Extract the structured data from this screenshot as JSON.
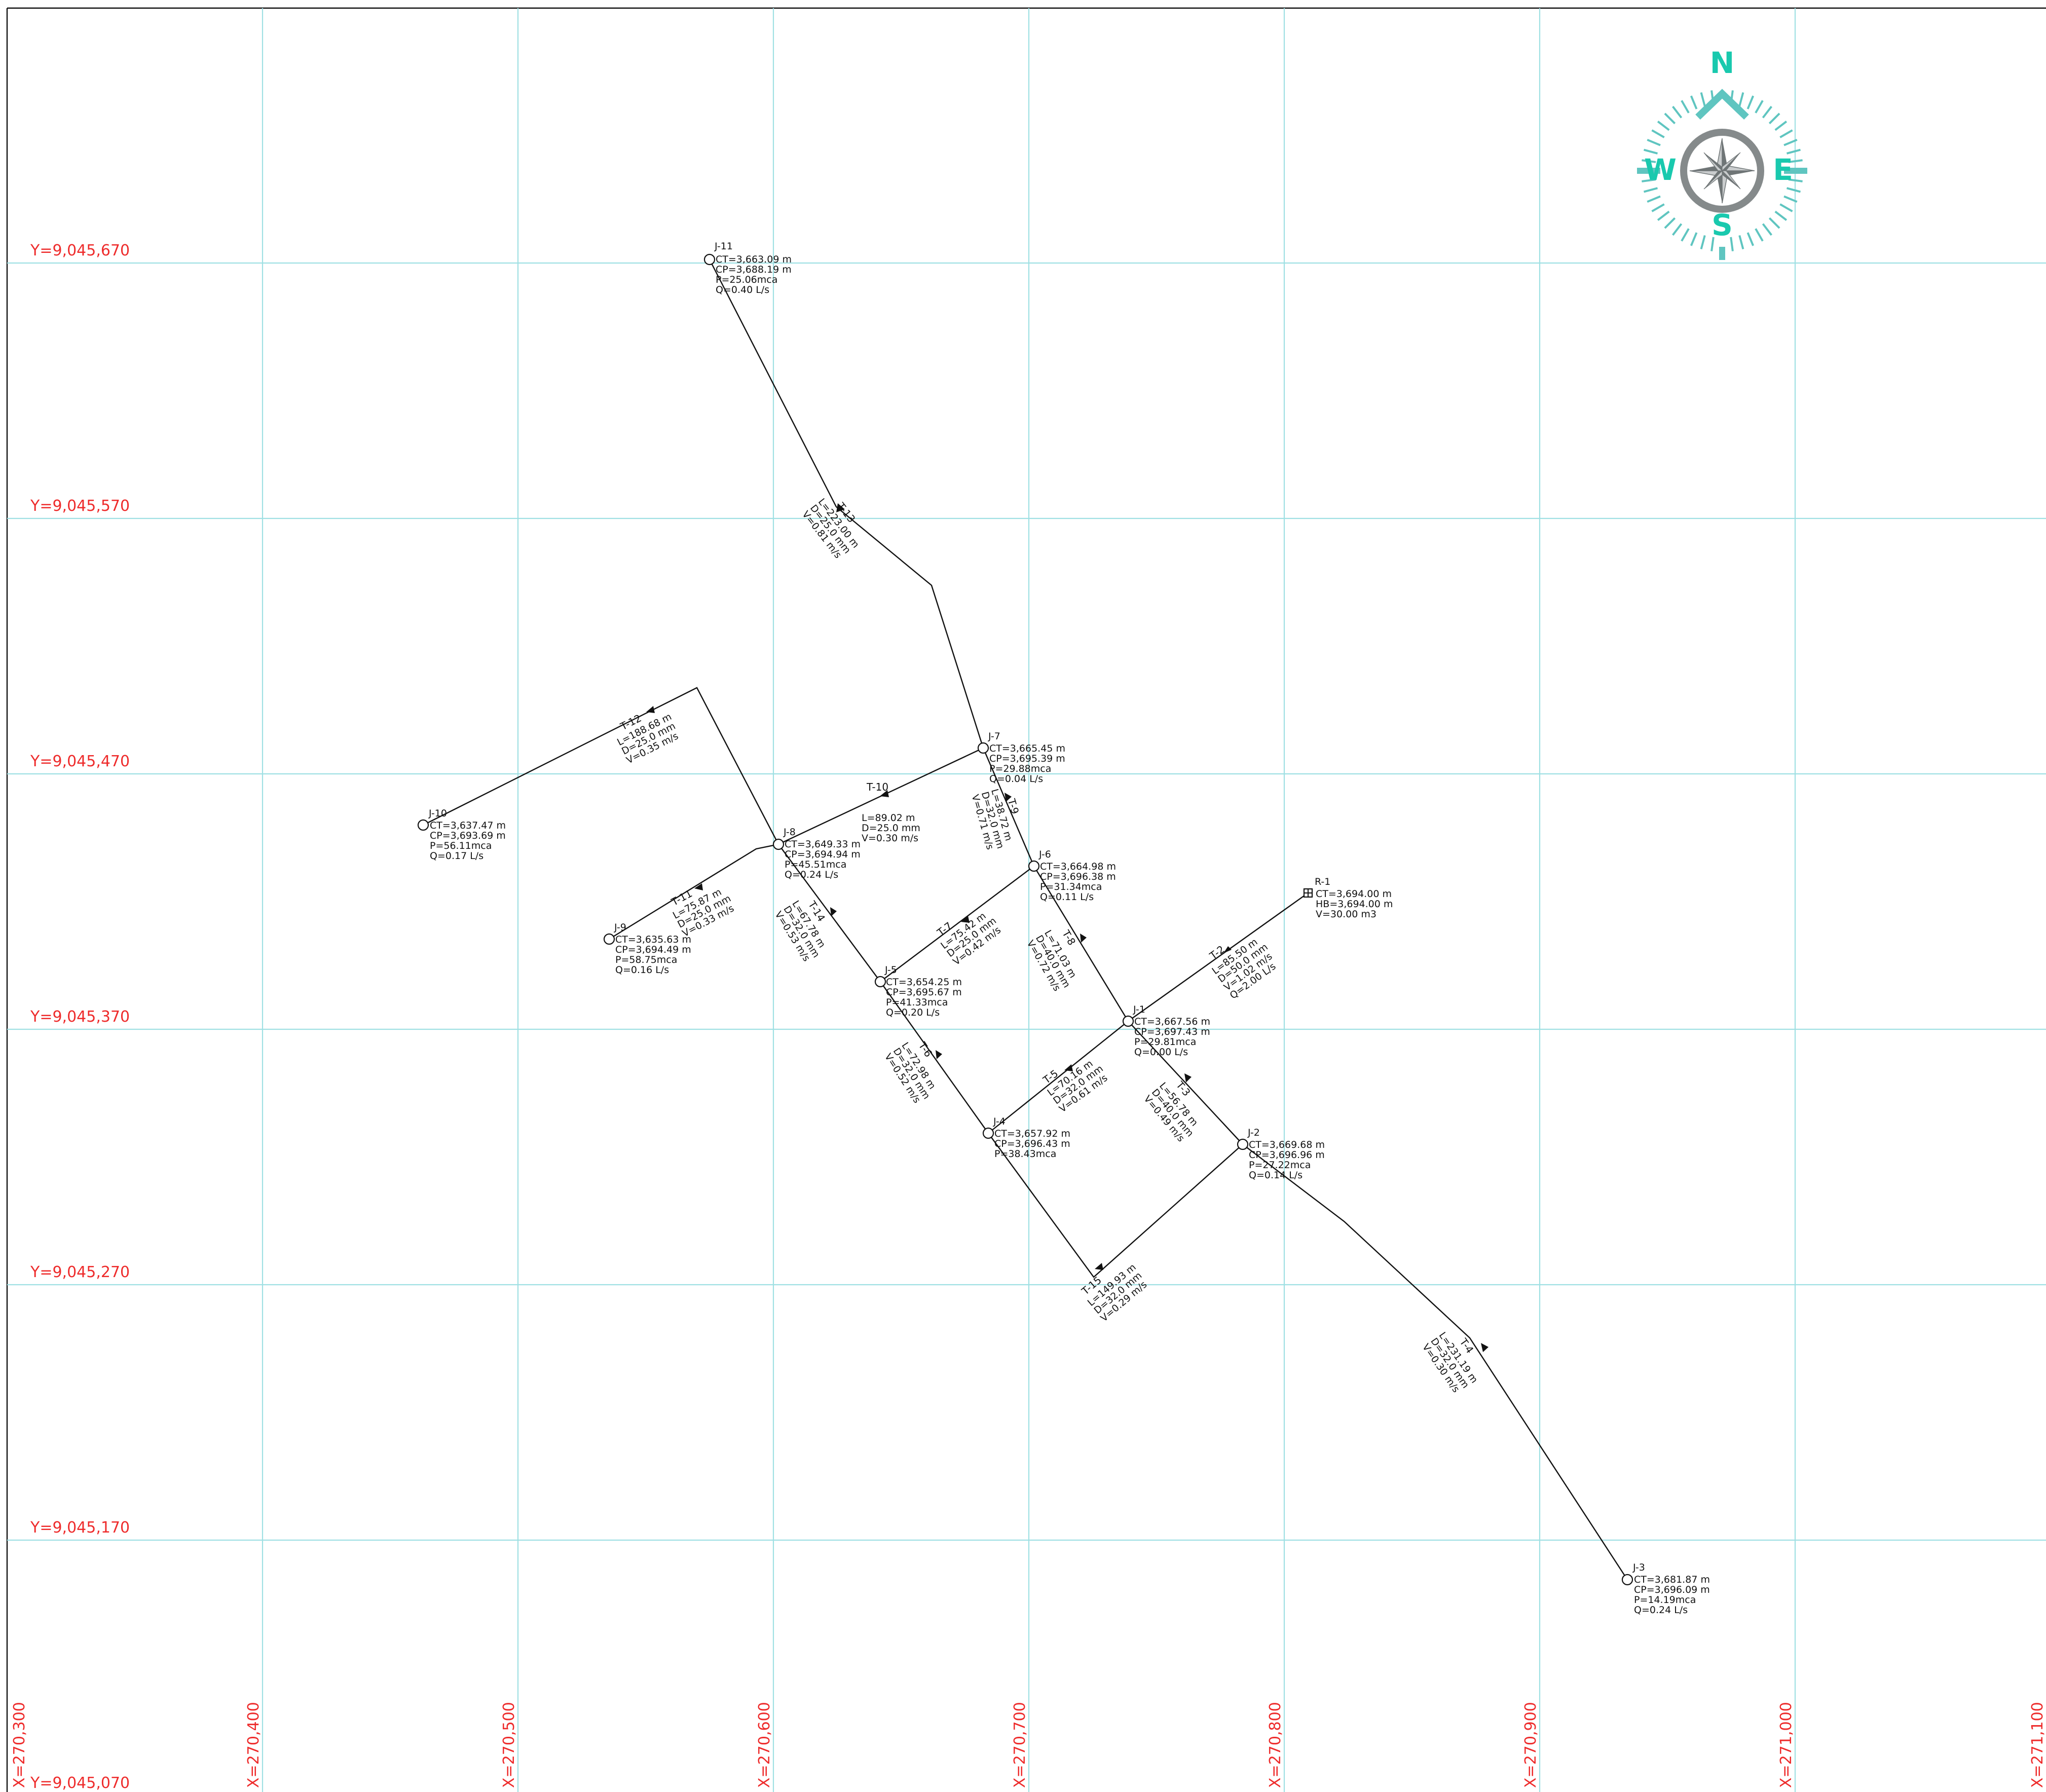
{
  "map": {
    "x_labels": [
      "X=270,300",
      "X=270,400",
      "X=270,500",
      "X=270,600",
      "X=270,700",
      "X=270,800",
      "X=270,900",
      "X=271,000",
      "X=271,100"
    ],
    "y_labels": [
      "Y=9,045,670",
      "Y=9,045,570",
      "Y=9,045,470",
      "Y=9,045,370",
      "Y=9,045,270",
      "Y=9,045,170",
      "Y=9,045,070"
    ],
    "compass": {
      "n": "N",
      "s": "S",
      "e": "E",
      "w": "W",
      "ring_color": "#858a8b",
      "letter_color": "#19c9ae",
      "tick_color": "#5fc5c0"
    },
    "colors": {
      "grid": "#9fe0e3",
      "coords": "#ee2b2b",
      "network": "#111111"
    }
  },
  "nodes": [
    {
      "id": "J-11",
      "lines": [
        "CT=3,663.09 m",
        "CP=3,688.19 m",
        "P=25.06mca",
        "Q=0.40 L/s"
      ]
    },
    {
      "id": "J-7",
      "lines": [
        "CT=3,665.45 m",
        "CP=3,695.39 m",
        "P=29.88mca",
        "Q=0.04 L/s"
      ]
    },
    {
      "id": "J-10",
      "lines": [
        "CT=3,637.47 m",
        "CP=3,693.69 m",
        "P=56.11mca",
        "Q=0.17 L/s"
      ]
    },
    {
      "id": "J-8",
      "lines": [
        "CT=3,649.33 m",
        "CP=3,694.94 m",
        "P=45.51mca",
        "Q=0.24 L/s"
      ]
    },
    {
      "id": "J-6",
      "lines": [
        "CT=3,664.98 m",
        "CP=3,696.38 m",
        "P=31.34mca",
        "Q=0.11 L/s"
      ]
    },
    {
      "id": "R-1",
      "lines": [
        "CT=3,694.00 m",
        "HB=3,694.00 m",
        "V=30.00 m3"
      ]
    },
    {
      "id": "J-9",
      "lines": [
        "CT=3,635.63 m",
        "CP=3,694.49 m",
        "P=58.75mca",
        "Q=0.16 L/s"
      ]
    },
    {
      "id": "J-5",
      "lines": [
        "CT=3,654.25 m",
        "CP=3,695.67 m",
        "P=41.33mca",
        "Q=0.20 L/s"
      ]
    },
    {
      "id": "J-1",
      "lines": [
        "CT=3,667.56 m",
        "CP=3,697.43 m",
        "P=29.81mca",
        "Q=0.00 L/s"
      ]
    },
    {
      "id": "J-4",
      "lines": [
        "CT=3,657.92 m",
        "CP=3,696.43 m",
        "P=38.43mca"
      ]
    },
    {
      "id": "J-2",
      "lines": [
        "CT=3,669.68 m",
        "CP=3,696.96 m",
        "P=27.22mca",
        "Q=0.14 L/s"
      ]
    },
    {
      "id": "J-3",
      "lines": [
        "CT=3,681.87 m",
        "CP=3,696.09 m",
        "P=14.19mca",
        "Q=0.24 L/s"
      ]
    }
  ],
  "pipes": [
    {
      "id": "T-13",
      "lines": [
        "L=223.00 m",
        "D=25.0 mm",
        "V=0.81 m/s"
      ]
    },
    {
      "id": "T-12",
      "lines": [
        "L=188.68 m",
        "D=25.0 mm",
        "V=0.35 m/s"
      ]
    },
    {
      "id": "T-10",
      "lines": [
        "L=89.02 m",
        "D=25.0 mm",
        "V=0.30 m/s"
      ]
    },
    {
      "id": "T-9",
      "lines": [
        "L=38.72 m",
        "D=32.0 mm",
        "V=0.71 m/s"
      ]
    },
    {
      "id": "T-11",
      "lines": [
        "L=75.87 m",
        "D=25.0 mm",
        "V=0.33 m/s"
      ]
    },
    {
      "id": "T-14",
      "lines": [
        "L=67.78 m",
        "D=32.0 mm",
        "V=0.53 m/s"
      ]
    },
    {
      "id": "T-7",
      "lines": [
        "L=75.42 m",
        "D=25.0 mm",
        "V=0.42 m/s"
      ]
    },
    {
      "id": "T-8",
      "lines": [
        "L=71.03 m",
        "D=40.0 mm",
        "V=0.72 m/s"
      ]
    },
    {
      "id": "T-2",
      "lines": [
        "L=85.50 m",
        "D=50.0 mm",
        "V=1.02 m/s",
        "Q=2.00 L/s"
      ]
    },
    {
      "id": "T-6",
      "lines": [
        "L=72.98 m",
        "D=32.0 mm",
        "V=0.52 m/s"
      ]
    },
    {
      "id": "T-5",
      "lines": [
        "L=70.16 m",
        "D=32.0 mm",
        "V=0.61 m/s"
      ]
    },
    {
      "id": "T-3",
      "lines": [
        "L=56.78 m",
        "D=40.0 mm",
        "V=0.49 m/s"
      ]
    },
    {
      "id": "T-15",
      "lines": [
        "L=149.93 m",
        "D=32.0 mm",
        "V=0.29 m/s"
      ]
    },
    {
      "id": "T-4",
      "lines": [
        "L=231.19 m",
        "D=32.0 mm",
        "V=0.30 m/s"
      ]
    }
  ]
}
